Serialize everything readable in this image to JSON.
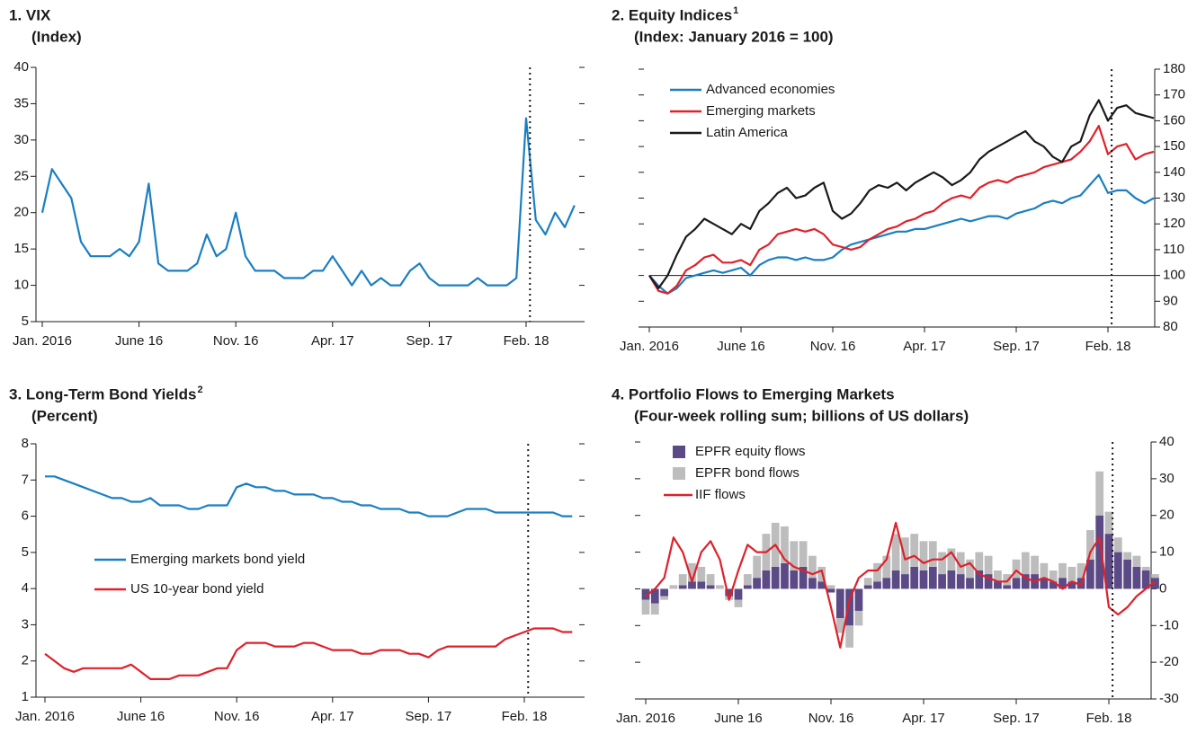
{
  "chart_data": [
    {
      "type": "line",
      "title": "1. VIX",
      "subtitle": "(Index)",
      "yaxis_side": "left",
      "categories": [
        "Jan. 2016",
        null,
        null,
        null,
        null,
        null,
        null,
        null,
        null,
        null,
        "June 16",
        null,
        null,
        null,
        null,
        null,
        null,
        null,
        null,
        null,
        "Nov. 16",
        null,
        null,
        null,
        null,
        null,
        null,
        null,
        null,
        null,
        "Apr. 17",
        null,
        null,
        null,
        null,
        null,
        null,
        null,
        null,
        null,
        "Sep. 17",
        null,
        null,
        null,
        null,
        null,
        null,
        null,
        null,
        null,
        "Feb. 18",
        null,
        null,
        null,
        null,
        null
      ],
      "values": [
        20,
        26,
        24,
        22,
        16,
        14,
        14,
        14,
        15,
        14,
        16,
        24,
        13,
        12,
        12,
        12,
        13,
        17,
        14,
        15,
        20,
        14,
        12,
        12,
        12,
        11,
        11,
        11,
        12,
        12,
        14,
        12,
        10,
        12,
        10,
        11,
        10,
        10,
        12,
        13,
        11,
        10,
        10,
        10,
        10,
        11,
        10,
        10,
        10,
        11,
        33,
        19,
        17,
        20,
        18,
        21
      ],
      "color": "#1a7fc1",
      "ylim": [
        5,
        40
      ],
      "yticks": [
        5,
        10,
        15,
        20,
        25,
        30,
        35,
        40
      ]
    },
    {
      "type": "line",
      "title": "2. Equity Indices",
      "title_note": "1",
      "subtitle": "(Index: January 2016 = 100)",
      "yaxis_side": "right",
      "legend": "upper left",
      "reference_line": 100,
      "categories": [
        "Jan. 2016",
        null,
        null,
        null,
        null,
        null,
        null,
        null,
        null,
        null,
        "June 16",
        null,
        null,
        null,
        null,
        null,
        null,
        null,
        null,
        null,
        "Nov. 16",
        null,
        null,
        null,
        null,
        null,
        null,
        null,
        null,
        null,
        "Apr. 17",
        null,
        null,
        null,
        null,
        null,
        null,
        null,
        null,
        null,
        "Sep. 17",
        null,
        null,
        null,
        null,
        null,
        null,
        null,
        null,
        null,
        "Feb. 18",
        null,
        null,
        null,
        null,
        null
      ],
      "series": [
        {
          "name": "Advanced economies",
          "color": "#1a7fc1",
          "values": [
            100,
            96,
            93,
            95,
            99,
            100,
            101,
            102,
            101,
            102,
            103,
            100,
            104,
            106,
            107,
            107,
            106,
            107,
            106,
            106,
            107,
            110,
            112,
            113,
            114,
            115,
            116,
            117,
            117,
            118,
            118,
            119,
            120,
            121,
            122,
            121,
            122,
            123,
            123,
            122,
            124,
            125,
            126,
            128,
            129,
            128,
            130,
            131,
            135,
            139,
            132,
            133,
            133,
            130,
            128,
            130
          ]
        },
        {
          "name": "Emerging markets",
          "color": "#e0202a",
          "values": [
            100,
            94,
            93,
            96,
            102,
            104,
            107,
            108,
            105,
            105,
            106,
            104,
            110,
            112,
            116,
            117,
            118,
            117,
            118,
            116,
            112,
            111,
            110,
            111,
            114,
            116,
            118,
            119,
            121,
            122,
            124,
            125,
            128,
            130,
            131,
            130,
            134,
            136,
            137,
            136,
            138,
            139,
            140,
            142,
            143,
            144,
            145,
            148,
            152,
            158,
            147,
            150,
            151,
            145,
            147,
            148
          ]
        },
        {
          "name": "Latin America",
          "color": "#1a1a1a",
          "values": [
            100,
            95,
            100,
            108,
            115,
            118,
            122,
            120,
            118,
            116,
            120,
            118,
            125,
            128,
            132,
            134,
            130,
            131,
            134,
            136,
            125,
            122,
            124,
            128,
            133,
            135,
            134,
            136,
            133,
            136,
            138,
            140,
            138,
            135,
            137,
            140,
            145,
            148,
            150,
            152,
            154,
            156,
            152,
            150,
            146,
            144,
            150,
            152,
            162,
            168,
            160,
            165,
            166,
            163,
            162,
            161
          ]
        }
      ],
      "ylim": [
        80,
        180
      ],
      "yticks": [
        80,
        90,
        100,
        110,
        120,
        130,
        140,
        150,
        160,
        170,
        180
      ]
    },
    {
      "type": "line",
      "title": "3. Long-Term Bond Yields",
      "title_note": "2",
      "subtitle": "(Percent)",
      "yaxis_side": "left",
      "legend": "center left",
      "categories": [
        "Jan. 2016",
        null,
        null,
        null,
        null,
        null,
        null,
        null,
        null,
        null,
        "June 16",
        null,
        null,
        null,
        null,
        null,
        null,
        null,
        null,
        null,
        "Nov. 16",
        null,
        null,
        null,
        null,
        null,
        null,
        null,
        null,
        null,
        "Apr. 17",
        null,
        null,
        null,
        null,
        null,
        null,
        null,
        null,
        null,
        "Sep. 17",
        null,
        null,
        null,
        null,
        null,
        null,
        null,
        null,
        null,
        "Feb. 18",
        null,
        null,
        null,
        null,
        null
      ],
      "series": [
        {
          "name": "Emerging markets bond yield",
          "color": "#1a7fc1",
          "values": [
            7.1,
            7.1,
            7.0,
            6.9,
            6.8,
            6.7,
            6.6,
            6.5,
            6.5,
            6.4,
            6.4,
            6.5,
            6.3,
            6.3,
            6.3,
            6.2,
            6.2,
            6.3,
            6.3,
            6.3,
            6.8,
            6.9,
            6.8,
            6.8,
            6.7,
            6.7,
            6.6,
            6.6,
            6.6,
            6.5,
            6.5,
            6.4,
            6.4,
            6.3,
            6.3,
            6.2,
            6.2,
            6.2,
            6.1,
            6.1,
            6.0,
            6.0,
            6.0,
            6.1,
            6.2,
            6.2,
            6.2,
            6.1,
            6.1,
            6.1,
            6.1,
            6.1,
            6.1,
            6.1,
            6.0,
            6.0
          ]
        },
        {
          "name": "US 10-year bond yield",
          "color": "#e0202a",
          "values": [
            2.2,
            2.0,
            1.8,
            1.7,
            1.8,
            1.8,
            1.8,
            1.8,
            1.8,
            1.9,
            1.7,
            1.5,
            1.5,
            1.5,
            1.6,
            1.6,
            1.6,
            1.7,
            1.8,
            1.8,
            2.3,
            2.5,
            2.5,
            2.5,
            2.4,
            2.4,
            2.4,
            2.5,
            2.5,
            2.4,
            2.3,
            2.3,
            2.3,
            2.2,
            2.2,
            2.3,
            2.3,
            2.3,
            2.2,
            2.2,
            2.1,
            2.3,
            2.4,
            2.4,
            2.4,
            2.4,
            2.4,
            2.4,
            2.6,
            2.7,
            2.8,
            2.9,
            2.9,
            2.9,
            2.8,
            2.8
          ]
        }
      ],
      "ylim": [
        1,
        8
      ],
      "yticks": [
        1,
        2,
        3,
        4,
        5,
        6,
        7,
        8
      ]
    },
    {
      "type": "combo",
      "title": "4. Portfolio Flows to Emerging Markets",
      "subtitle": "(Four-week rolling sum; billions of US dollars)",
      "yaxis_side": "right",
      "legend": "upper left",
      "categories": [
        "Jan. 2016",
        null,
        null,
        null,
        null,
        null,
        null,
        null,
        null,
        null,
        "June 16",
        null,
        null,
        null,
        null,
        null,
        null,
        null,
        null,
        null,
        "Nov. 16",
        null,
        null,
        null,
        null,
        null,
        null,
        null,
        null,
        null,
        "Apr. 17",
        null,
        null,
        null,
        null,
        null,
        null,
        null,
        null,
        null,
        "Sep. 17",
        null,
        null,
        null,
        null,
        null,
        null,
        null,
        null,
        null,
        "Feb. 18",
        null,
        null,
        null,
        null,
        null
      ],
      "series": [
        {
          "name": "EPFR equity flows",
          "kind": "bar",
          "color": "#5b4a85",
          "values": [
            -3,
            -4,
            -2,
            0,
            1,
            2,
            2,
            1,
            0,
            -2,
            -3,
            1,
            3,
            5,
            6,
            7,
            5,
            6,
            3,
            2,
            -1,
            -8,
            -10,
            -6,
            1,
            2,
            3,
            5,
            4,
            6,
            5,
            6,
            4,
            5,
            4,
            3,
            5,
            4,
            2,
            1,
            3,
            4,
            4,
            3,
            2,
            3,
            2,
            3,
            8,
            20,
            15,
            10,
            8,
            6,
            5,
            3
          ]
        },
        {
          "name": "EPFR bond flows",
          "kind": "bar",
          "color": "#bdbdbd",
          "values": [
            -4,
            -3,
            -1,
            1,
            3,
            5,
            4,
            3,
            1,
            -1,
            -2,
            3,
            6,
            10,
            12,
            10,
            8,
            7,
            6,
            4,
            1,
            -4,
            -6,
            -4,
            2,
            5,
            6,
            10,
            10,
            9,
            8,
            7,
            6,
            6,
            6,
            5,
            5,
            5,
            3,
            3,
            5,
            6,
            5,
            4,
            3,
            4,
            4,
            4,
            8,
            12,
            6,
            4,
            2,
            3,
            1,
            1
          ]
        },
        {
          "name": "IIF flows",
          "kind": "line",
          "color": "#e0202a",
          "values": [
            -2,
            0,
            3,
            14,
            10,
            2,
            10,
            13,
            8,
            -3,
            5,
            12,
            10,
            10,
            12,
            8,
            6,
            5,
            4,
            5,
            -5,
            -16,
            -3,
            3,
            5,
            5,
            8,
            18,
            8,
            9,
            7,
            8,
            8,
            10,
            6,
            7,
            4,
            3,
            2,
            2,
            5,
            3,
            2,
            3,
            2,
            0,
            2,
            1,
            10,
            14,
            -5,
            -7,
            -5,
            -2,
            0,
            2
          ]
        }
      ],
      "ylim": [
        -30,
        40
      ],
      "yticks": [
        -30,
        -20,
        -10,
        0,
        10,
        20,
        30,
        40
      ]
    }
  ]
}
